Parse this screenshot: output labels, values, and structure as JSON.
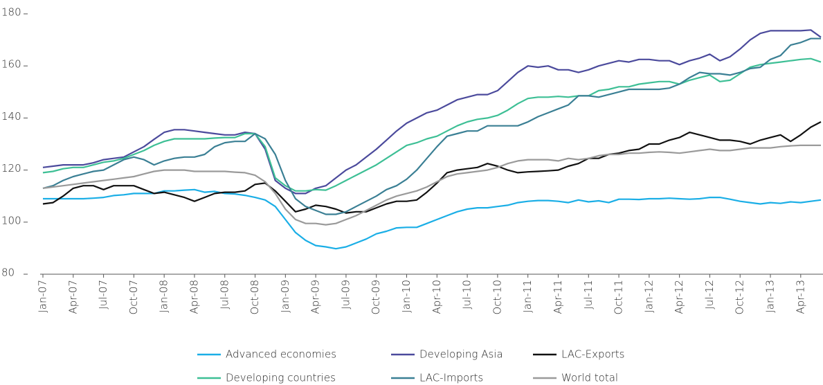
{
  "chart_data": {
    "type": "line",
    "categories": [
      "Jan-07",
      null,
      null,
      "Apr-07",
      null,
      null,
      "Jul-07",
      null,
      null,
      "Oct-07",
      null,
      null,
      "Jan-08",
      null,
      null,
      "Apr-08",
      null,
      null,
      "Jul-08",
      null,
      null,
      "Oct-08",
      null,
      null,
      "Jan-09",
      null,
      null,
      "Apr-09",
      null,
      null,
      "Jul-09",
      null,
      null,
      "Oct-09",
      null,
      null,
      "Jan-10",
      null,
      null,
      "Apr-10",
      null,
      null,
      "Jul-10",
      null,
      null,
      "Oct-10",
      null,
      null,
      "Jan-11",
      null,
      null,
      "Apr-11",
      null,
      null,
      "Jul-11",
      null,
      null,
      "Oct-11",
      null,
      null,
      "Jan-12",
      null,
      null,
      "Apr-12",
      null,
      null,
      "Jul-12",
      null,
      null,
      "Oct-12",
      null,
      null,
      "Jan-13",
      null,
      null,
      "Apr-13",
      null,
      null
    ],
    "series": [
      {
        "name": "Advanced economies",
        "color": "#1aaee6",
        "values": [
          109,
          109,
          109,
          109,
          109,
          109.2,
          109.5,
          110.2,
          110.5,
          111,
          111,
          111,
          112,
          112,
          112.3,
          112.5,
          111.5,
          111.8,
          111,
          110.8,
          110.3,
          109.5,
          108.5,
          106,
          101,
          96,
          93,
          91,
          90.5,
          89.8,
          90.5,
          92,
          93.5,
          95.5,
          96.5,
          97.8,
          98,
          98,
          99.5,
          101,
          102.5,
          104,
          105,
          105.5,
          105.5,
          106,
          106.5,
          107.5,
          108,
          108.3,
          108.3,
          108,
          107.5,
          108.5,
          107.8,
          108.2,
          107.5,
          108.8,
          108.8,
          108.7,
          109,
          109,
          109.2,
          109,
          108.8,
          109,
          109.5,
          109.5,
          108.8,
          108,
          107.5,
          107,
          107.5,
          107.2,
          107.8,
          107.5,
          108,
          108.5
        ]
      },
      {
        "name": "Developing Asia",
        "color": "#4b4a9c",
        "values": [
          121,
          121.5,
          122,
          122,
          122,
          122.8,
          124,
          124.5,
          125,
          127,
          129,
          131.8,
          134.5,
          135.5,
          135.5,
          135,
          134.5,
          134,
          133.5,
          133.5,
          134.5,
          134,
          128,
          116,
          113,
          111,
          111,
          113,
          114,
          117,
          120,
          122,
          125,
          128,
          131.5,
          135,
          138,
          140,
          142,
          143,
          145,
          147,
          148,
          149,
          149,
          150.5,
          154,
          157.5,
          160,
          159.5,
          160,
          158.5,
          158.5,
          157.5,
          158.5,
          160,
          161,
          162,
          161.5,
          162.5,
          162.5,
          162,
          162,
          160.5,
          162,
          163,
          164.5,
          162,
          163.5,
          166.5,
          170,
          172.5,
          173.5,
          173.5,
          173.5,
          173.5,
          173.8,
          171
        ]
      },
      {
        "name": "LAC-Exports",
        "color": "#111111",
        "values": [
          107,
          107.5,
          110,
          113,
          114,
          114,
          112.5,
          114,
          114,
          114,
          112.5,
          111,
          111.5,
          110.5,
          109.5,
          108,
          109.5,
          111,
          111.5,
          111.5,
          112,
          114.5,
          115,
          112,
          108,
          104,
          105,
          106.5,
          106,
          105,
          103.5,
          104,
          104,
          105.5,
          107,
          108,
          108,
          108.5,
          111.5,
          115,
          119,
          120,
          120.5,
          121,
          122.5,
          121.5,
          120,
          119,
          119.3,
          119.5,
          119.7,
          120,
          121.5,
          122.5,
          124.5,
          124.5,
          126,
          126.5,
          127.5,
          128,
          130,
          130,
          131.5,
          132.5,
          134.5,
          133.5,
          132.5,
          131.5,
          131.5,
          131,
          130,
          131.5,
          132.5,
          133.5,
          131,
          133.5,
          136.5,
          138.5
        ]
      },
      {
        "name": "Developing countries",
        "color": "#3dbf95",
        "values": [
          119,
          119.5,
          120.5,
          121,
          121,
          122,
          123,
          123.5,
          124.5,
          126,
          127.5,
          129.5,
          131,
          132,
          132,
          132,
          132,
          132.3,
          132.5,
          132.5,
          134,
          134,
          129,
          117,
          114,
          112,
          112,
          112.5,
          112.3,
          114,
          116,
          118,
          120,
          122,
          124.5,
          127,
          129.5,
          130.5,
          132,
          133,
          135,
          137,
          138.5,
          139.5,
          140,
          141,
          143,
          145.5,
          147.5,
          148,
          148,
          148.3,
          148,
          148.5,
          148.5,
          150.5,
          151,
          152,
          152,
          153,
          153.5,
          154,
          154,
          153,
          154.5,
          155.5,
          156.5,
          154,
          154.5,
          157,
          159.5,
          160.5,
          161,
          161.5,
          162,
          162.5,
          162.8,
          161.5
        ]
      },
      {
        "name": "LAC-Imports",
        "color": "#3a7f94",
        "values": [
          113,
          114,
          116,
          117.5,
          118.5,
          119.5,
          120,
          122,
          124,
          125,
          124,
          122,
          123.5,
          124.5,
          125,
          125,
          126,
          129,
          130.5,
          131,
          131,
          134,
          132,
          126,
          116,
          109,
          106,
          104.5,
          103,
          103,
          104,
          106,
          108,
          110,
          112.5,
          114,
          116.5,
          120,
          124.5,
          129,
          133,
          134,
          135,
          135,
          137,
          137,
          137,
          137,
          138.5,
          140.5,
          142,
          143.5,
          145,
          148.5,
          148.5,
          148,
          149,
          150,
          151,
          151,
          151,
          151,
          151.5,
          153,
          155.5,
          157.5,
          157,
          157,
          156.5,
          157.5,
          159,
          159.5,
          162.5,
          164,
          168,
          169,
          170.5,
          170.5
        ]
      },
      {
        "name": "World total",
        "color": "#9a9a9a",
        "values": [
          113,
          113.5,
          114,
          114.5,
          115,
          115.5,
          116,
          116.5,
          117,
          117.5,
          118.5,
          119.5,
          120,
          120,
          120,
          119.5,
          119.5,
          119.5,
          119.5,
          119.2,
          119,
          118,
          115.5,
          111,
          105,
          101,
          99.5,
          99.5,
          99,
          99.5,
          101,
          102.5,
          104.5,
          106.5,
          108.5,
          110,
          111,
          112,
          113.5,
          115.5,
          117.5,
          118.5,
          119,
          119.5,
          120,
          121,
          122.5,
          123.5,
          124,
          124,
          124,
          123.5,
          124.5,
          124,
          124.5,
          125.5,
          126,
          126,
          126.5,
          126.5,
          126.8,
          127,
          126.8,
          126.5,
          127,
          127.5,
          128,
          127.5,
          127.5,
          128,
          128.5,
          128.5,
          128.5,
          129,
          129.3,
          129.5,
          129.5,
          129.5
        ]
      }
    ],
    "ylim": [
      80,
      180
    ],
    "yticks": [
      80,
      100,
      120,
      140,
      160,
      180
    ]
  }
}
